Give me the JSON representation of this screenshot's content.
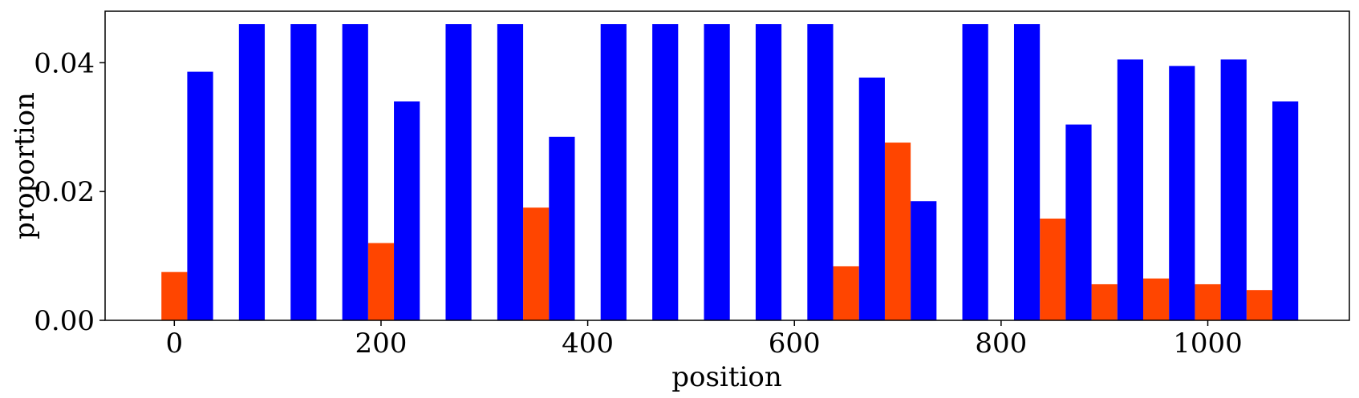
{
  "chart_data": {
    "type": "bar",
    "xlabel": "position",
    "ylabel": "proportion",
    "xlim": [
      -67,
      1137
    ],
    "ylim": [
      0,
      0.048
    ],
    "x_ticks": [
      0,
      200,
      400,
      600,
      800,
      1000
    ],
    "x_tick_labels": [
      "0",
      "200",
      "400",
      "600",
      "800",
      "1000"
    ],
    "y_ticks": [
      0,
      0.02,
      0.04
    ],
    "y_tick_labels": [
      "0.00",
      "0.02",
      "0.04"
    ],
    "bar_width": 25,
    "grid": false,
    "legend": "none",
    "series": [
      {
        "color": "#ff4500",
        "x": [
          0,
          200,
          350,
          650,
          700,
          850,
          900,
          950,
          1000,
          1050
        ],
        "values": [
          0.0075,
          0.012,
          0.0175,
          0.0084,
          0.0276,
          0.0158,
          0.0056,
          0.0065,
          0.0056,
          0.0047
        ]
      },
      {
        "color": "#0000ff",
        "x": [
          25,
          75,
          125,
          175,
          225,
          275,
          325,
          375,
          425,
          475,
          525,
          575,
          625,
          675,
          725,
          775,
          825,
          875,
          925,
          975,
          1025,
          1075
        ],
        "values": [
          0.0386,
          0.046,
          0.046,
          0.046,
          0.034,
          0.046,
          0.046,
          0.0285,
          0.046,
          0.046,
          0.046,
          0.046,
          0.046,
          0.0377,
          0.0185,
          0.046,
          0.046,
          0.0304,
          0.0405,
          0.0395,
          0.0405,
          0.034
        ]
      }
    ]
  }
}
